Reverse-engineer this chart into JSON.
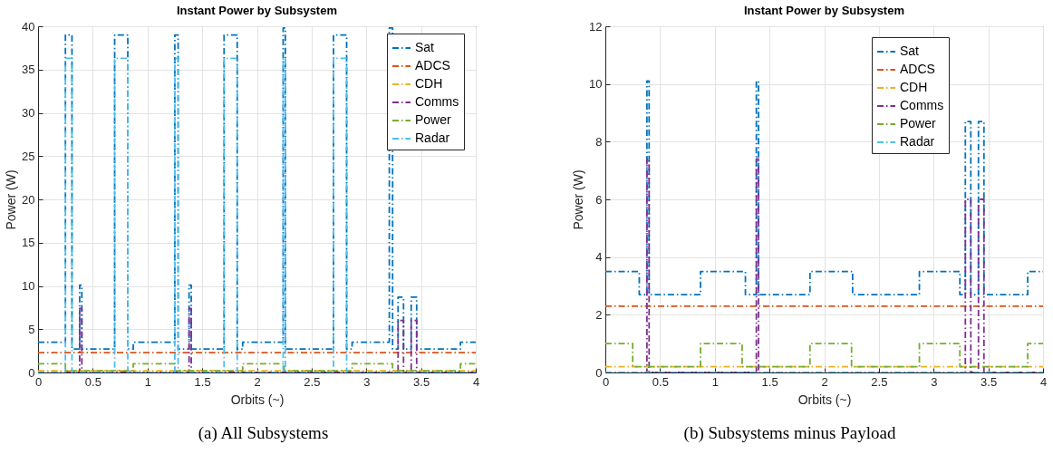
{
  "chart_data": [
    {
      "type": "step",
      "title": "Instant Power by Subsystem",
      "xlabel": "Orbits (~)",
      "ylabel": "Power (W)",
      "annotations": [
        "(a) All Subsystems"
      ],
      "xlim": [
        0,
        4
      ],
      "xticks": [
        0,
        0.5,
        1,
        1.5,
        2,
        2.5,
        3,
        3.5,
        4
      ],
      "ylim": [
        0,
        40
      ],
      "yticks": [
        0,
        5,
        10,
        15,
        20,
        25,
        30,
        35,
        40
      ],
      "grid": true,
      "legend": "top right",
      "line_style": "dashed",
      "marker": "none",
      "series": [
        {
          "name": "Sat",
          "color": "#0072bd",
          "x": [
            0,
            0.25,
            0.31,
            0.38,
            0.4,
            0.7,
            0.82,
            0.87,
            1.25,
            1.28,
            1.38,
            1.4,
            1.7,
            1.82,
            1.87,
            2.24,
            2.26,
            2.7,
            2.82,
            2.87,
            3.21,
            3.24,
            3.29,
            3.34,
            3.41,
            3.46,
            3.69,
            3.81,
            3.86,
            4
          ],
          "values": [
            3.5,
            39,
            2.7,
            10.1,
            2.7,
            39,
            2.7,
            3.5,
            39,
            2.7,
            10.1,
            2.7,
            39,
            2.7,
            3.5,
            39.8,
            2.7,
            39,
            2.7,
            3.5,
            39.8,
            2.7,
            8.7,
            2.7,
            8.7,
            2.7,
            null,
            2.7,
            3.5,
            3.5
          ]
        },
        {
          "name": "ADCS",
          "color": "#d95319",
          "x": [
            0,
            4
          ],
          "values": [
            2.3,
            2.3
          ]
        },
        {
          "name": "CDH",
          "color": "#edb120",
          "x": [
            0,
            4
          ],
          "values": [
            0.2,
            0.2
          ]
        },
        {
          "name": "Comms",
          "color": "#7e2f8e",
          "x": [
            0,
            0.38,
            0.4,
            1.38,
            1.4,
            3.29,
            3.34,
            3.41,
            3.46,
            4
          ],
          "values": [
            0,
            7.4,
            0,
            7.4,
            0,
            6,
            0,
            6,
            0,
            0
          ]
        },
        {
          "name": "Power",
          "color": "#77ac30",
          "x": [
            0,
            0.25,
            0.87,
            1.25,
            1.87,
            2.25,
            2.87,
            3.24,
            3.86,
            4
          ],
          "values": [
            1,
            0.2,
            1,
            0.2,
            1,
            0.2,
            1,
            0.2,
            1,
            1
          ]
        },
        {
          "name": "Radar",
          "color": "#4dbeee",
          "x": [
            0,
            0.25,
            0.31,
            0.7,
            0.82,
            1.25,
            1.28,
            1.7,
            1.82,
            2.24,
            2.26,
            2.7,
            2.82,
            3.21,
            3.24,
            3.69,
            3.81,
            4
          ],
          "values": [
            0,
            36.3,
            0,
            36.3,
            0,
            36.3,
            0,
            36.3,
            0,
            36.3,
            0,
            36.3,
            0,
            null,
            0,
            null,
            0,
            0
          ]
        }
      ]
    },
    {
      "type": "step",
      "title": "Instant Power by Subsystem",
      "xlabel": "Orbits (~)",
      "ylabel": "Power (W)",
      "annotations": [
        "(b) Subsystems minus Payload"
      ],
      "xlim": [
        0,
        4
      ],
      "xticks": [
        0,
        0.5,
        1,
        1.5,
        2,
        2.5,
        3,
        3.5,
        4
      ],
      "ylim": [
        0,
        12
      ],
      "yticks": [
        0,
        2,
        4,
        6,
        8,
        10,
        12
      ],
      "grid": true,
      "legend": "top right",
      "line_style": "dashed",
      "marker": "none",
      "series": [
        {
          "name": "Sat",
          "color": "#0072bd",
          "x": [
            0,
            0.25,
            0.31,
            0.38,
            0.4,
            0.7,
            0.82,
            0.87,
            1.25,
            1.28,
            1.38,
            1.4,
            1.7,
            1.82,
            1.87,
            2.24,
            2.26,
            2.7,
            2.82,
            2.87,
            3.21,
            3.24,
            3.29,
            3.34,
            3.41,
            3.46,
            3.69,
            3.81,
            3.86,
            4
          ],
          "values": [
            3.5,
            null,
            2.7,
            10.1,
            2.7,
            null,
            2.7,
            3.5,
            null,
            2.7,
            10.1,
            2.7,
            null,
            2.7,
            3.5,
            null,
            2.7,
            null,
            2.7,
            3.5,
            null,
            2.7,
            8.7,
            2.7,
            8.7,
            2.7,
            null,
            2.7,
            3.5,
            3.5
          ]
        },
        {
          "name": "ADCS",
          "color": "#d95319",
          "x": [
            0,
            4
          ],
          "values": [
            2.3,
            2.3
          ]
        },
        {
          "name": "CDH",
          "color": "#edb120",
          "x": [
            0,
            4
          ],
          "values": [
            0.2,
            0.2
          ]
        },
        {
          "name": "Comms",
          "color": "#7e2f8e",
          "x": [
            0,
            0.38,
            0.4,
            1.38,
            1.4,
            3.29,
            3.34,
            3.41,
            3.46,
            4
          ],
          "values": [
            0,
            7.4,
            0,
            7.4,
            0,
            6,
            0,
            6,
            0,
            0
          ]
        },
        {
          "name": "Power",
          "color": "#77ac30",
          "x": [
            0,
            0.25,
            0.87,
            1.25,
            1.87,
            2.25,
            2.87,
            3.24,
            3.86,
            4
          ],
          "values": [
            1,
            0.2,
            1,
            0.2,
            1,
            0.2,
            1,
            0.2,
            1,
            1
          ]
        },
        {
          "name": "Radar",
          "color": "#4dbeee",
          "x": [
            0,
            0.25,
            0.31,
            0.7,
            0.82,
            1.25,
            1.28,
            1.7,
            1.82,
            2.24,
            2.26,
            2.7,
            2.82,
            3.21,
            3.24,
            3.69,
            3.81,
            4
          ],
          "values": [
            0,
            null,
            0,
            null,
            0,
            null,
            0,
            null,
            0,
            null,
            0,
            null,
            0,
            null,
            0,
            null,
            0,
            0
          ]
        }
      ]
    }
  ]
}
